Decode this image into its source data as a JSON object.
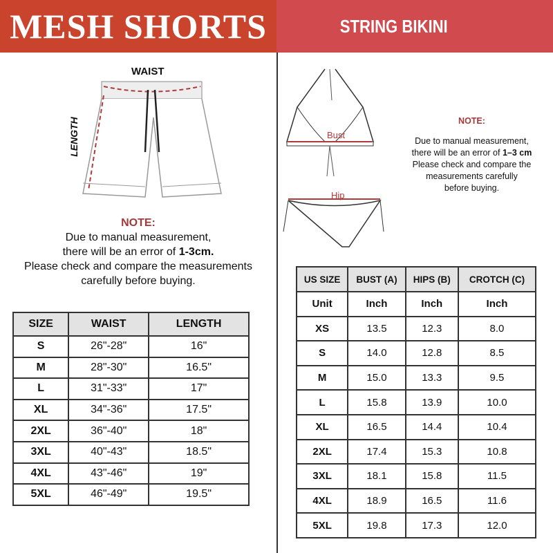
{
  "left": {
    "title": "MESH SHORTS",
    "waist_label": "WAIST",
    "length_label": "LENGTH",
    "note": {
      "title": "NOTE:",
      "line1": "Due to manual measurement,",
      "line2_pre": "there will be an error of ",
      "line2_bold": "1-3cm.",
      "line3": "Please check and compare the measurements",
      "line4": "carefully before buying."
    },
    "table": {
      "headers": [
        "SIZE",
        "WAIST",
        "LENGTH"
      ],
      "rows": [
        [
          "S",
          "26\"-28\"",
          "16\""
        ],
        [
          "M",
          "28\"-30\"",
          "16.5\""
        ],
        [
          "L",
          "31\"-33\"",
          "17\""
        ],
        [
          "XL",
          "34\"-36\"",
          "17.5\""
        ],
        [
          "2XL",
          "36\"-40\"",
          "18\""
        ],
        [
          "3XL",
          "40\"-43\"",
          "18.5\""
        ],
        [
          "4XL",
          "43\"-46\"",
          "19\""
        ],
        [
          "5XL",
          "46\"-49\"",
          "19.5\""
        ]
      ]
    }
  },
  "right": {
    "title": "STRING BIKINI",
    "bust_label": "Bust",
    "hip_label": "Hip",
    "note": {
      "title": "NOTE:",
      "line1": "Due to manual measurement,",
      "line2_pre": "there will be an error of ",
      "line2_bold": "1–3 cm",
      "line3": "Please check and compare the",
      "line4": "measurements carefully",
      "line5": "before buying."
    },
    "table": {
      "headers": [
        "US SIZE",
        "BUST (A)",
        "HIPS (B)",
        "CROTCH (C)"
      ],
      "unit_row": [
        "Unit",
        "Inch",
        "Inch",
        "Inch"
      ],
      "rows": [
        [
          "XS",
          "13.5",
          "12.3",
          "8.0"
        ],
        [
          "S",
          "14.0",
          "12.8",
          "8.5"
        ],
        [
          "M",
          "15.0",
          "13.3",
          "9.5"
        ],
        [
          "L",
          "15.8",
          "13.9",
          "10.0"
        ],
        [
          "XL",
          "16.5",
          "14.4",
          "10.4"
        ],
        [
          "2XL",
          "17.4",
          "15.3",
          "10.8"
        ],
        [
          "3XL",
          "18.1",
          "15.8",
          "11.5"
        ],
        [
          "4XL",
          "18.9",
          "16.5",
          "11.6"
        ],
        [
          "5XL",
          "19.8",
          "17.3",
          "12.0"
        ]
      ]
    }
  },
  "colors": {
    "left_header": "#c9432d",
    "right_header": "#d04a4e",
    "note_title": "#a3393a",
    "measure_line": "#b03a3a"
  }
}
